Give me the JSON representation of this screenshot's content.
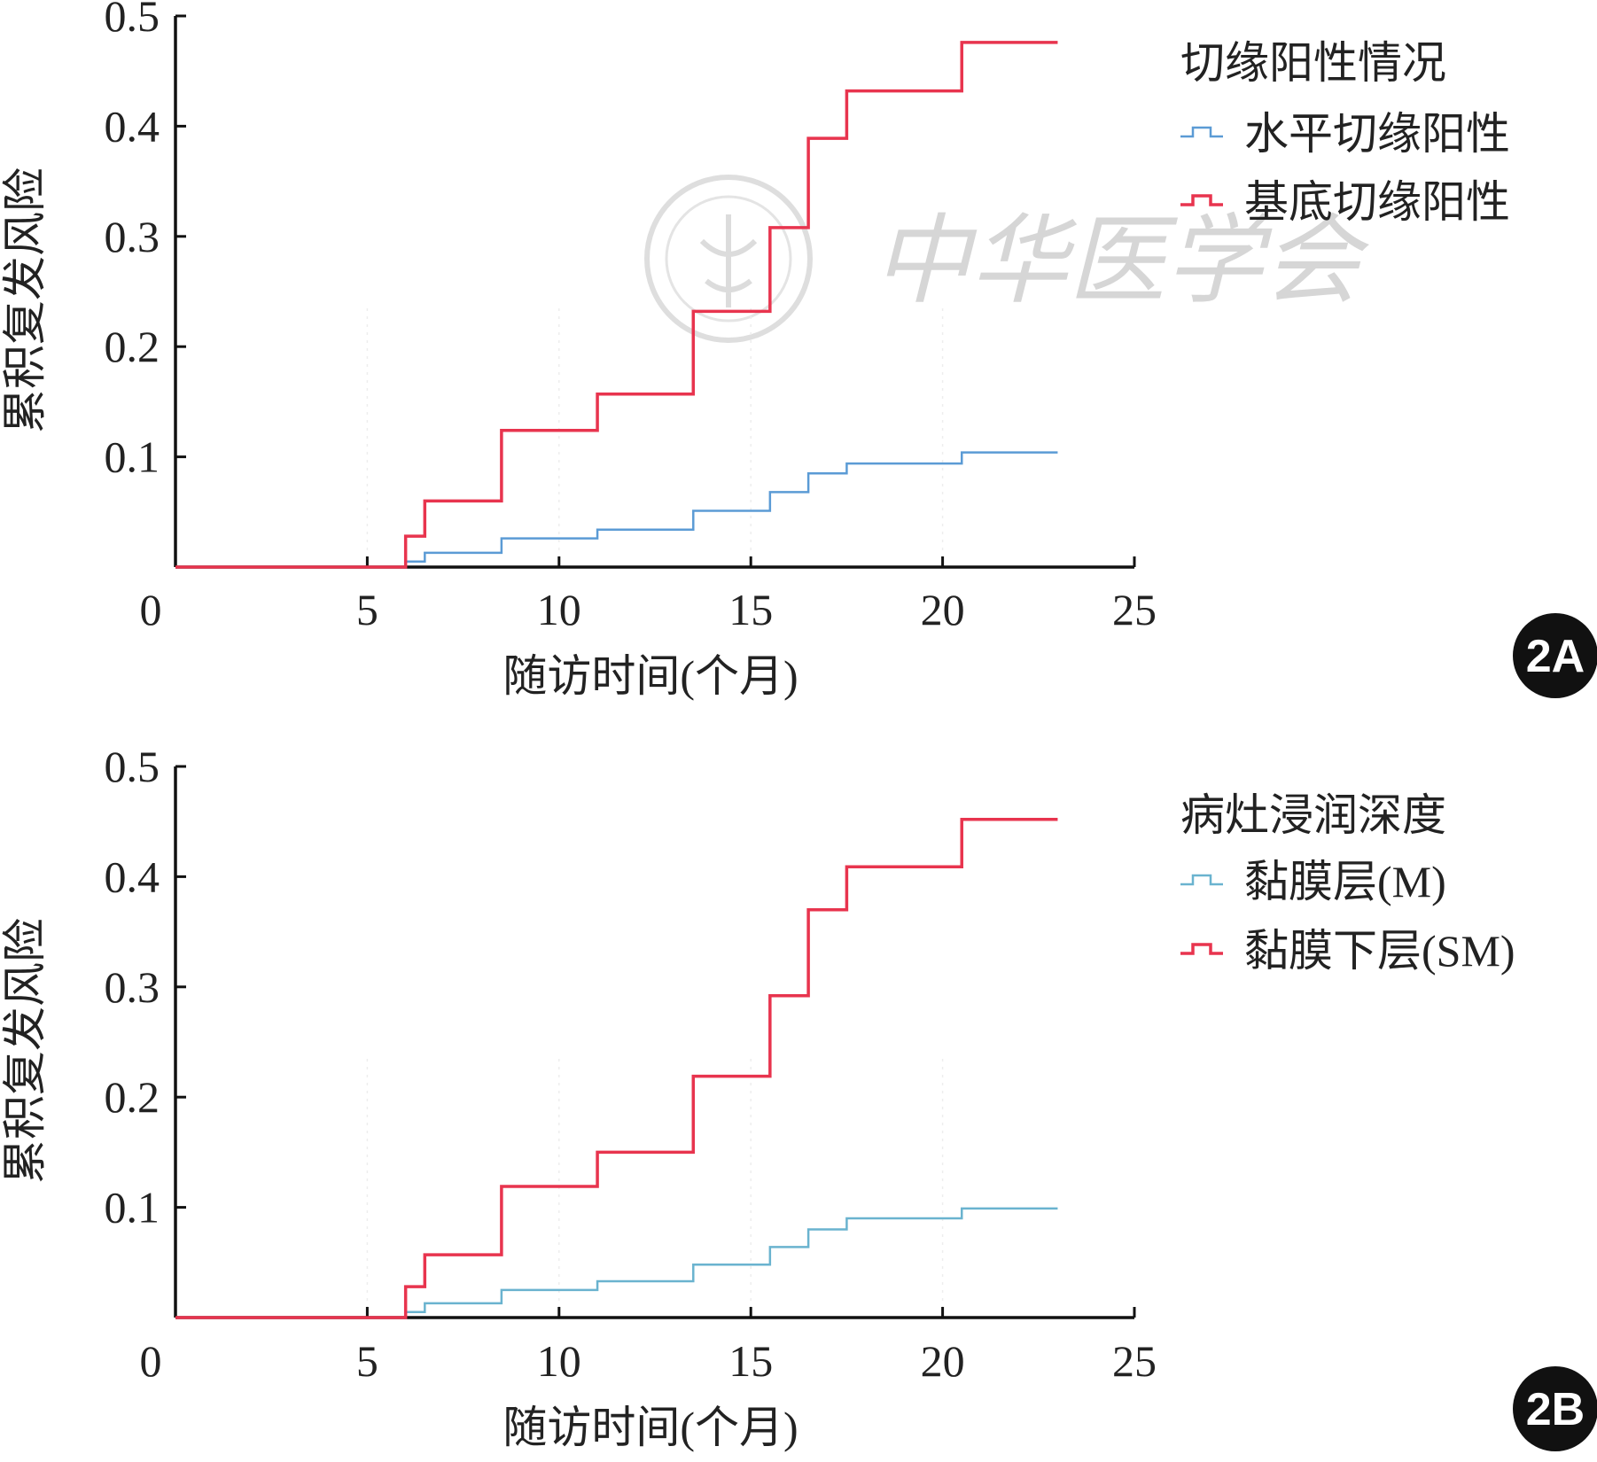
{
  "chart_data": [
    {
      "panel_label": "2A",
      "type": "line",
      "step": true,
      "xlabel": "随访时间(个月)",
      "ylabel": "累积复发风险",
      "xlim": [
        0,
        25
      ],
      "ylim": [
        0,
        0.5
      ],
      "xticks": [
        "0",
        "5",
        "10",
        "15",
        "20",
        "25"
      ],
      "yticks": [
        "0.1",
        "0.2",
        "0.3",
        "0.4",
        "0.5"
      ],
      "grid": false,
      "legend": {
        "title": "切缘阳性情况",
        "position": "right-top",
        "items": [
          "水平切缘阳性",
          "基底切缘阳性"
        ]
      },
      "series": [
        {
          "name": "水平切缘阳性",
          "color": "#5b9bd5",
          "x": [
            0,
            6.0,
            6.5,
            8.5,
            11.0,
            13.5,
            15.5,
            16.5,
            17.5,
            20.5,
            23.0
          ],
          "y": [
            0,
            0.005,
            0.013,
            0.026,
            0.034,
            0.051,
            0.068,
            0.085,
            0.094,
            0.104,
            0.104
          ]
        },
        {
          "name": "基底切缘阳性",
          "color": "#e8344e",
          "x": [
            0,
            6.0,
            6.5,
            8.5,
            11.0,
            13.5,
            15.5,
            16.5,
            17.5,
            20.5,
            23.0
          ],
          "y": [
            0,
            0.028,
            0.06,
            0.124,
            0.157,
            0.232,
            0.308,
            0.389,
            0.432,
            0.476,
            0.476
          ]
        }
      ]
    },
    {
      "panel_label": "2B",
      "type": "line",
      "step": true,
      "xlabel": "随访时间(个月)",
      "ylabel": "累积复发风险",
      "xlim": [
        0,
        25
      ],
      "ylim": [
        0,
        0.5
      ],
      "xticks": [
        "0",
        "5",
        "10",
        "15",
        "20",
        "25"
      ],
      "yticks": [
        "0.1",
        "0.2",
        "0.3",
        "0.4",
        "0.5"
      ],
      "grid": false,
      "legend": {
        "title": "病灶浸润深度",
        "position": "right-top",
        "items": [
          "黏膜层(M)",
          "黏膜下层(SM)"
        ]
      },
      "series": [
        {
          "name": "黏膜层(M)",
          "color": "#6ab3cf",
          "x": [
            0,
            6.0,
            6.5,
            8.5,
            11.0,
            13.5,
            15.5,
            16.5,
            17.5,
            20.5,
            23.0
          ],
          "y": [
            0,
            0.005,
            0.013,
            0.025,
            0.033,
            0.048,
            0.064,
            0.08,
            0.09,
            0.099,
            0.099
          ]
        },
        {
          "name": "黏膜下层(SM)",
          "color": "#e8344e",
          "x": [
            0,
            6.0,
            6.5,
            8.5,
            11.0,
            13.5,
            15.5,
            16.5,
            17.5,
            20.5,
            23.0
          ],
          "y": [
            0,
            0.028,
            0.057,
            0.119,
            0.15,
            0.219,
            0.292,
            0.37,
            0.409,
            0.452,
            0.452
          ]
        }
      ]
    }
  ],
  "watermark": {
    "text": "中华医学会"
  },
  "badge_color": "#111111"
}
